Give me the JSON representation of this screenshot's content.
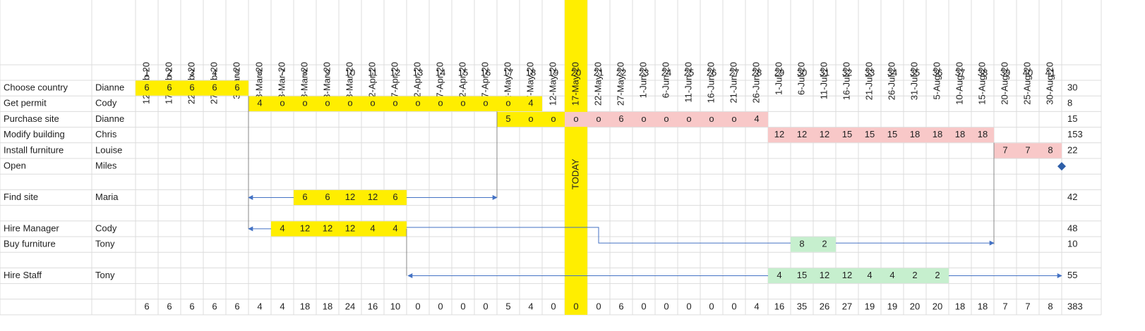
{
  "header": {
    "dates": [
      "12-Feb-20",
      "17-Feb-20",
      "22-Feb-20",
      "27-Feb-20",
      "3-Mar-20",
      "8-Mar-20",
      "13-Mar-20",
      "18-Mar-20",
      "23-Mar-20",
      "28-Mar-20",
      "2-Apr-20",
      "7-Apr-20",
      "12-Apr-20",
      "17-Apr-20",
      "22-Apr-20",
      "27-Apr-20",
      "2-May-20",
      "7-May-20",
      "12-May-20",
      "17-May-20",
      "22-May-20",
      "27-May-20",
      "1-Jun-20",
      "6-Jun-20",
      "11-Jun-20",
      "16-Jun-20",
      "21-Jun-20",
      "26-Jun-20",
      "1-Jul-20",
      "6-Jul-20",
      "11-Jul-20",
      "16-Jul-20",
      "21-Jul-20",
      "26-Jul-20",
      "31-Jul-20",
      "5-Aug-20",
      "10-Aug-20",
      "15-Aug-20",
      "20-Aug-20",
      "25-Aug-20",
      "30-Aug-20"
    ],
    "periods": [
      1,
      2,
      3,
      4,
      5,
      6,
      7,
      8,
      9,
      10,
      11,
      12,
      13,
      14,
      15,
      16,
      17,
      18,
      19,
      20,
      21,
      22,
      23,
      24,
      25,
      26,
      27,
      28,
      29,
      30,
      31,
      32,
      33,
      34,
      35,
      36,
      37,
      38,
      39,
      40,
      41
    ]
  },
  "today_label": "TODAY",
  "rows": [
    {
      "task": "Choose country",
      "owner": "Dianne",
      "color": "#ffee00",
      "total": 30,
      "cells": [
        6,
        6,
        6,
        6,
        6,
        null,
        null,
        null,
        null,
        null,
        null,
        null,
        null,
        null,
        null,
        null,
        null,
        null,
        null,
        null,
        null,
        null,
        null,
        null,
        null,
        null,
        null,
        null,
        null,
        null,
        null,
        null,
        null,
        null,
        null,
        null,
        null,
        null,
        null,
        null,
        null
      ]
    },
    {
      "task": "Get permit",
      "owner": "Cody",
      "color": "#ffee00",
      "total": 8,
      "cells": [
        null,
        null,
        null,
        null,
        null,
        4,
        "o",
        "o",
        "o",
        "o",
        "o",
        "o",
        "o",
        "o",
        "o",
        "o",
        "o",
        4,
        null,
        null,
        null,
        null,
        null,
        null,
        null,
        null,
        null,
        null,
        null,
        null,
        null,
        null,
        null,
        null,
        null,
        null,
        null,
        null,
        null,
        null,
        null
      ]
    },
    {
      "task": "Purchase site",
      "owner": "Dianne",
      "color": "#f8c8c8",
      "total": 15,
      "cells": [
        null,
        null,
        null,
        null,
        null,
        null,
        null,
        null,
        null,
        null,
        null,
        null,
        null,
        null,
        null,
        null,
        {
          "text": 5,
          "color": "#ffee00"
        },
        {
          "text": "o",
          "color": "#ffee00"
        },
        {
          "text": "o",
          "color": "#ffee00"
        },
        "o",
        "o",
        6,
        "o",
        "o",
        "o",
        "o",
        "o",
        4,
        null,
        null,
        null,
        null,
        null,
        null,
        null,
        null,
        null,
        null,
        null,
        null,
        null
      ]
    },
    {
      "task": "Modify building",
      "owner": "Chris",
      "color": "#f8c8c8",
      "total": 153,
      "cells": [
        null,
        null,
        null,
        null,
        null,
        null,
        null,
        null,
        null,
        null,
        null,
        null,
        null,
        null,
        null,
        null,
        null,
        null,
        null,
        null,
        null,
        null,
        null,
        null,
        null,
        null,
        null,
        null,
        12,
        12,
        12,
        15,
        15,
        15,
        18,
        18,
        18,
        18,
        null,
        null,
        null
      ]
    },
    {
      "task": "Install furniture",
      "owner": "Louise",
      "color": "#f8c8c8",
      "total": 22,
      "cells": [
        null,
        null,
        null,
        null,
        null,
        null,
        null,
        null,
        null,
        null,
        null,
        null,
        null,
        null,
        null,
        null,
        null,
        null,
        null,
        null,
        null,
        null,
        null,
        null,
        null,
        null,
        null,
        null,
        null,
        null,
        null,
        null,
        null,
        null,
        null,
        null,
        null,
        null,
        7,
        7,
        8
      ]
    },
    {
      "task": "Open",
      "owner": "Miles",
      "color": "#ffee00",
      "total": null,
      "cells": []
    },
    {
      "task": "Find site",
      "owner": "Maria",
      "color": "#ffee00",
      "total": 42,
      "cells": [
        null,
        null,
        null,
        null,
        null,
        null,
        null,
        6,
        6,
        12,
        12,
        6,
        null,
        null,
        null,
        null,
        null,
        null,
        null,
        null,
        null,
        null,
        null,
        null,
        null,
        null,
        null,
        null,
        null,
        null,
        null,
        null,
        null,
        null,
        null,
        null,
        null,
        null,
        null,
        null,
        null
      ]
    },
    {
      "task": "Hire Manager",
      "owner": "Cody",
      "color": "#ffee00",
      "total": 48,
      "cells": [
        null,
        null,
        null,
        null,
        null,
        null,
        4,
        12,
        12,
        12,
        4,
        4,
        null,
        null,
        null,
        null,
        null,
        null,
        null,
        null,
        null,
        null,
        null,
        null,
        null,
        null,
        null,
        null,
        null,
        null,
        null,
        null,
        null,
        null,
        null,
        null,
        null,
        null,
        null,
        null,
        null
      ]
    },
    {
      "task": "Buy furniture",
      "owner": "Tony",
      "color": "#c6efce",
      "total": 10,
      "cells": [
        null,
        null,
        null,
        null,
        null,
        null,
        null,
        null,
        null,
        null,
        null,
        null,
        null,
        null,
        null,
        null,
        null,
        null,
        null,
        null,
        null,
        null,
        null,
        null,
        null,
        null,
        null,
        null,
        null,
        8,
        2,
        null,
        null,
        null,
        null,
        null,
        null,
        null,
        null,
        null,
        null
      ]
    },
    {
      "task": "Hire Staff",
      "owner": "Tony",
      "color": "#c6efce",
      "total": 55,
      "cells": [
        null,
        null,
        null,
        null,
        null,
        null,
        null,
        null,
        null,
        null,
        null,
        null,
        null,
        null,
        null,
        null,
        null,
        null,
        null,
        null,
        null,
        null,
        null,
        null,
        null,
        null,
        null,
        null,
        4,
        15,
        12,
        12,
        4,
        4,
        2,
        2,
        null,
        null,
        null,
        null,
        null
      ]
    }
  ],
  "footer": {
    "totals": [
      6,
      6,
      6,
      6,
      6,
      4,
      4,
      18,
      18,
      24,
      16,
      10,
      0,
      0,
      0,
      0,
      5,
      4,
      0,
      0,
      0,
      6,
      0,
      0,
      0,
      0,
      0,
      4,
      16,
      35,
      26,
      27,
      19,
      19,
      20,
      20,
      18,
      18,
      7,
      7,
      8
    ],
    "grand_total": 383
  }
}
